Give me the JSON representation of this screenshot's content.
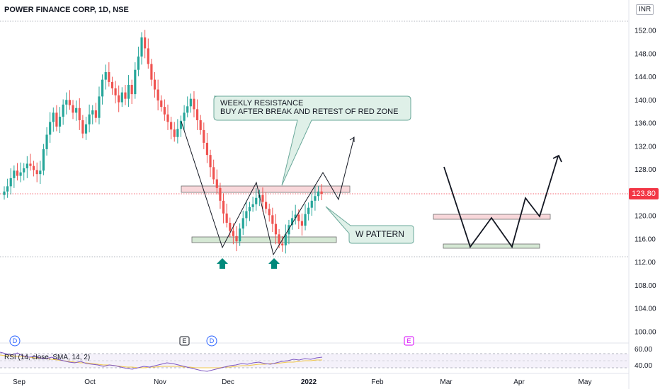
{
  "header": {
    "title": "POWER FINANCE CORP, 1D, NSE",
    "currency": "INR"
  },
  "price_tag": "123.80",
  "rsi_label": "RSI (14, close, SMA, 14, 2)",
  "annotations": {
    "resistance_line1": "WEEKLY RESISTANCE",
    "resistance_line2": "BUY AFTER BREAK AND RETEST OF RED ZONE",
    "w_pattern": "W PATTERN"
  },
  "events": {
    "dividend": "D",
    "earnings": "E"
  },
  "colors": {
    "up": "#26a69a",
    "down": "#ef5350",
    "resistance_zone": "#f8d7da",
    "support_zone": "#d5e8d4",
    "callout_bg": "#dff0e8",
    "callout_border": "#6aa89a",
    "arrow": "#00897b",
    "rsi": "#7e57c2",
    "rsi_ma": "#f2c94c",
    "price_line": "#f23645"
  },
  "chart_data": {
    "type": "candlestick",
    "title": "POWER FINANCE CORP, 1D, NSE",
    "y_ticks": [
      "152.00",
      "148.00",
      "144.00",
      "140.00",
      "136.00",
      "132.00",
      "128.00",
      "124.00",
      "120.00",
      "116.00",
      "112.00",
      "108.00",
      "104.00",
      "100.00"
    ],
    "y_range": [
      98,
      154
    ],
    "x_ticks": [
      "Sep",
      "Oct",
      "Nov",
      "Dec",
      "2022",
      "Feb",
      "Mar",
      "Apr",
      "May"
    ],
    "last_price": 123.8,
    "resistance_zone": [
      124.1,
      124.7
    ],
    "support_zone": [
      115.5,
      116.1
    ],
    "rsi_ticks": [
      "60.00",
      "40.00"
    ],
    "rsi_range": [
      30,
      72
    ],
    "prices_close": [
      124.2,
      125.1,
      126.5,
      127.8,
      126.9,
      127.5,
      128.2,
      129.0,
      128.6,
      127.9,
      127.2,
      127.8,
      131.5,
      134.0,
      136.2,
      137.8,
      135.4,
      137.1,
      139.2,
      140.0,
      139.1,
      137.8,
      138.6,
      136.5,
      134.2,
      135.8,
      137.5,
      138.2,
      136.9,
      140.6,
      143.5,
      144.8,
      143.1,
      142.0,
      140.8,
      139.6,
      141.3,
      140.2,
      142.6,
      141.0,
      145.2,
      147.5,
      150.8,
      148.9,
      146.2,
      143.5,
      141.8,
      139.9,
      138.8,
      137.5,
      136.2,
      134.9,
      133.6,
      135.0,
      136.4,
      137.8,
      138.9,
      140.2,
      138.4,
      136.5,
      134.8,
      132.6,
      130.5,
      128.4,
      126.3,
      124.8,
      122.6,
      120.4,
      118.8,
      117.4,
      116.5,
      115.6,
      117.8,
      119.6,
      120.8,
      121.5,
      122.0,
      123.1,
      123.6,
      122.4,
      121.2,
      120.1,
      118.6,
      116.8,
      115.2,
      114.9,
      116.8,
      118.4,
      119.6,
      120.2,
      119.1,
      118.3,
      120.3,
      121.4,
      122.6,
      123.4,
      124.2,
      123.8
    ],
    "rsi_values": [
      62,
      60,
      58,
      61,
      57,
      55,
      56,
      54,
      53,
      55,
      52,
      50,
      48,
      47,
      49,
      46,
      45,
      44,
      42,
      44,
      43,
      41,
      39,
      38,
      40,
      42,
      41,
      43,
      45,
      47,
      46,
      44,
      42,
      40,
      38,
      36,
      35,
      37,
      39,
      41,
      43,
      44,
      46,
      45,
      47,
      48,
      46,
      45,
      47,
      49,
      50,
      52,
      51,
      53,
      52,
      54,
      55
    ],
    "rsi_ma_values": [
      58,
      57,
      57,
      56,
      56,
      55,
      54,
      54,
      53,
      52,
      51,
      50,
      49,
      48,
      47,
      47,
      46,
      45,
      44,
      44,
      43,
      42,
      41,
      41,
      40,
      40,
      41,
      41,
      42,
      42,
      42,
      42,
      41,
      41,
      40,
      40,
      40,
      40,
      40,
      41,
      41,
      42,
      43,
      43,
      44,
      45,
      45,
      46,
      46,
      47,
      48,
      48,
      49,
      50,
      50,
      51,
      51
    ]
  }
}
